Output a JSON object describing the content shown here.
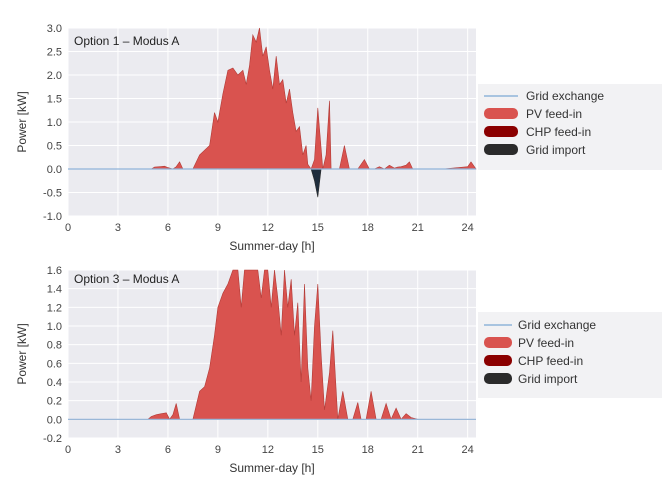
{
  "colors": {
    "pv": "#d9534f",
    "pv_stroke": "#b23a36",
    "chp": "#8b0000",
    "grid_import": "#2b2b2b",
    "grid_import_fill": "#1f2d3d",
    "grid_exchange": "#8fb4d9",
    "panel_bg": "#ebebf0",
    "legend_bg": "#f2f2f4",
    "grid": "#ffffff"
  },
  "legend": {
    "grid_exchange": "Grid exchange",
    "pv_feed_in": "PV feed-in",
    "chp_feed_in": "CHP feed-in",
    "grid_import": "Grid import"
  },
  "chart_data": [
    {
      "type": "area",
      "title": "Option 1 – Modus A",
      "xlabel": "Summer-day [h]",
      "ylabel": "Power [kW]",
      "xlim": [
        0,
        24.5
      ],
      "ylim": [
        -1.0,
        3.0
      ],
      "xticks": [
        "0",
        "3",
        "6",
        "9",
        "12",
        "15",
        "18",
        "21",
        "24"
      ],
      "yticks": [
        "-1.0",
        "-0.5",
        "0.0",
        "0.5",
        "1.0",
        "1.5",
        "2.0",
        "2.5",
        "3.0"
      ],
      "grid": true,
      "legend_position": "right",
      "series": [
        {
          "name": "PV feed-in",
          "x": [
            0,
            5.0,
            5.2,
            5.5,
            5.8,
            6.0,
            6.3,
            6.5,
            6.7,
            6.9,
            7.5,
            7.9,
            8.2,
            8.5,
            8.8,
            9.0,
            9.3,
            9.6,
            9.9,
            10.2,
            10.5,
            10.7,
            10.9,
            11.1,
            11.3,
            11.5,
            11.7,
            11.9,
            12.1,
            12.3,
            12.5,
            12.7,
            12.9,
            13.1,
            13.3,
            13.5,
            13.7,
            13.9,
            14.1,
            14.3,
            14.4,
            14.6,
            14.8,
            15.0,
            15.3,
            15.5,
            15.7,
            15.8,
            16.0,
            16.3,
            16.6,
            16.9,
            17.1,
            17.4,
            17.8,
            18.1,
            18.4,
            18.7,
            19.0,
            19.3,
            19.6,
            19.8,
            20.0,
            20.3,
            20.5,
            20.7,
            21.0,
            22.5,
            24.0,
            24.2,
            24.5
          ],
          "y": [
            0,
            0,
            0.04,
            0.05,
            0.06,
            0.03,
            0,
            0.05,
            0.15,
            0,
            0,
            0.3,
            0.4,
            0.5,
            1.2,
            1.0,
            1.6,
            2.1,
            2.15,
            2.0,
            2.1,
            1.8,
            2.2,
            2.85,
            2.7,
            3.0,
            2.4,
            2.6,
            2.1,
            1.7,
            2.4,
            1.8,
            1.9,
            1.4,
            1.7,
            1.2,
            0.8,
            0.9,
            0.3,
            0.5,
            0.1,
            0,
            0.2,
            1.3,
            0,
            0.3,
            1.45,
            0,
            0,
            0,
            0.5,
            0,
            0,
            0,
            0.2,
            0,
            0,
            0.05,
            0,
            0.08,
            0.02,
            0.04,
            0.05,
            0.08,
            0.15,
            0,
            0,
            0,
            0.05,
            0.15,
            0
          ]
        },
        {
          "name": "Grid import",
          "x": [
            14.6,
            14.8,
            15.0,
            15.2
          ],
          "y": [
            0,
            -0.25,
            -0.6,
            0
          ]
        }
      ]
    },
    {
      "type": "area",
      "title": "Option 3 – Modus A",
      "xlabel": "Summer-day [h]",
      "ylabel": "Power [kW]",
      "xlim": [
        0,
        24.5
      ],
      "ylim": [
        -0.2,
        1.6
      ],
      "xticks": [
        "0",
        "3",
        "6",
        "9",
        "12",
        "15",
        "18",
        "21",
        "24"
      ],
      "yticks": [
        "-0.2",
        "0.0",
        "0.2",
        "0.4",
        "0.6",
        "0.8",
        "1.0",
        "1.2",
        "1.4",
        "1.6"
      ],
      "grid": true,
      "legend_position": "right",
      "series": [
        {
          "name": "PV feed-in",
          "x": [
            0,
            4.8,
            5.0,
            5.3,
            5.6,
            5.9,
            6.1,
            6.3,
            6.5,
            6.7,
            6.9,
            7.5,
            7.9,
            8.2,
            8.5,
            8.8,
            9.0,
            9.3,
            9.6,
            9.9,
            10.2,
            10.4,
            10.6,
            10.8,
            11.0,
            11.2,
            11.4,
            11.6,
            11.8,
            12.0,
            12.2,
            12.4,
            12.6,
            12.8,
            13.0,
            13.2,
            13.4,
            13.6,
            13.8,
            14.0,
            14.2,
            14.4,
            14.6,
            14.8,
            15.0,
            15.2,
            15.4,
            15.7,
            15.9,
            16.2,
            16.5,
            16.8,
            17.1,
            17.4,
            17.6,
            17.9,
            18.2,
            18.5,
            18.8,
            19.1,
            19.4,
            19.7,
            20.0,
            20.3,
            20.6,
            21.0,
            24.0,
            24.5
          ],
          "y": [
            0,
            0,
            0.03,
            0.05,
            0.06,
            0.07,
            0,
            0.05,
            0.17,
            0,
            0,
            0,
            0.3,
            0.35,
            0.55,
            0.9,
            1.2,
            1.35,
            1.45,
            1.6,
            1.6,
            1.2,
            1.6,
            1.6,
            1.6,
            1.6,
            1.6,
            1.3,
            1.6,
            1.6,
            1.2,
            1.6,
            1.3,
            0.9,
            1.6,
            1.2,
            1.5,
            0.9,
            1.25,
            0.4,
            1.45,
            0.55,
            0.2,
            1.0,
            1.45,
            0.7,
            0.1,
            0.5,
            0.95,
            0,
            0.3,
            0,
            0,
            0.18,
            0,
            0,
            0.3,
            0,
            0,
            0.17,
            0,
            0.12,
            0,
            0.06,
            0.02,
            0,
            0,
            0
          ]
        }
      ]
    }
  ]
}
